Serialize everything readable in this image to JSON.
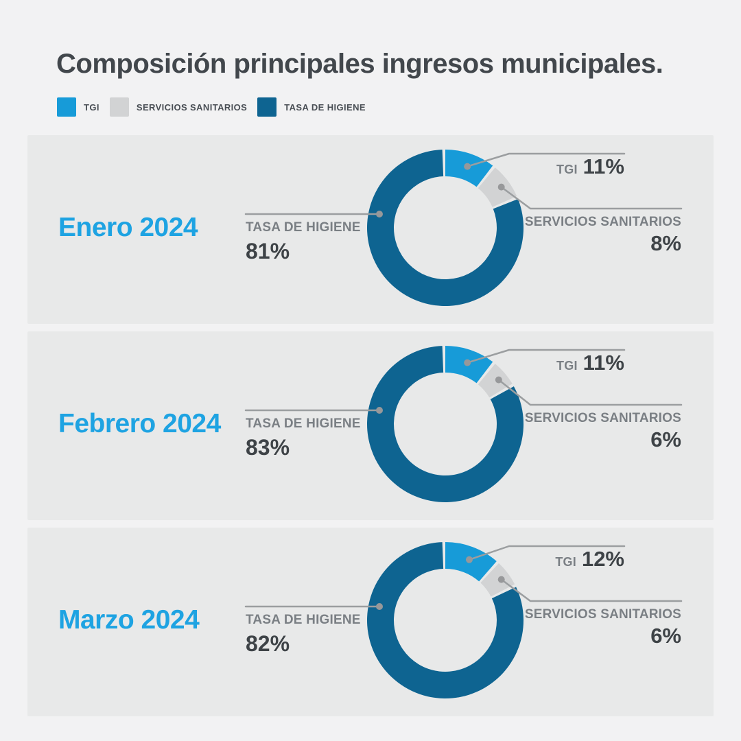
{
  "title": "Composición principales ingresos municipales.",
  "colors": {
    "background": "#F2F2F3",
    "panel": "#E8E9E9",
    "accent_blue": "#179BD8",
    "dark_blue": "#0E6491",
    "gray_segment": "#D2D3D4",
    "month_blue": "#1EA3E2",
    "callout_line": "#9B9EA0",
    "callout_dot": "#97989A",
    "label_gray": "#7A7F84",
    "value_dark": "#3E4347",
    "title_color": "#42474C",
    "legend_text": "#4A4F55"
  },
  "legend": [
    {
      "label": "TGI",
      "color_key": "accent_blue"
    },
    {
      "label": "SERVICIOS SANITARIOS",
      "color_key": "gray_segment"
    },
    {
      "label": "TASA DE HIGIENE",
      "color_key": "dark_blue"
    }
  ],
  "months": [
    {
      "month_label": "Enero 2024",
      "tgi_label": "TGI",
      "tgi_value": "11%",
      "ss_label": "SERVICIOS SANITARIOS",
      "ss_value": "8%",
      "tasa_label": "TASA DE HIGIENE",
      "tasa_value": "81%",
      "segments": {
        "tgi": 11,
        "ss": 8,
        "tasa": 81
      }
    },
    {
      "month_label": "Febrero 2024",
      "tgi_label": "TGI",
      "tgi_value": "11%",
      "ss_label": "SERVICIOS SANITARIOS",
      "ss_value": "6%",
      "tasa_label": "TASA DE HIGIENE",
      "tasa_value": "83%",
      "segments": {
        "tgi": 11,
        "ss": 6,
        "tasa": 83
      }
    },
    {
      "month_label": "Marzo 2024",
      "tgi_label": "TGI",
      "tgi_value": "12%",
      "ss_label": "SERVICIOS SANITARIOS",
      "ss_value": "6%",
      "tasa_label": "TASA DE HIGIENE",
      "tasa_value": "82%",
      "segments": {
        "tgi": 12,
        "ss": 6,
        "tasa": 82
      }
    }
  ],
  "chart_data": [
    {
      "type": "pie",
      "style": "donut",
      "title": "Enero 2024",
      "labels": [
        "TGI",
        "SERVICIOS SANITARIOS",
        "TASA DE HIGIENE"
      ],
      "values": [
        11,
        8,
        81
      ],
      "unit": "percent",
      "start_angle_deg": 0,
      "direction": "clockwise",
      "legend_position": "callouts"
    },
    {
      "type": "pie",
      "style": "donut",
      "title": "Febrero 2024",
      "labels": [
        "TGI",
        "SERVICIOS SANITARIOS",
        "TASA DE HIGIENE"
      ],
      "values": [
        11,
        6,
        83
      ],
      "unit": "percent",
      "start_angle_deg": 0,
      "direction": "clockwise",
      "legend_position": "callouts"
    },
    {
      "type": "pie",
      "style": "donut",
      "title": "Marzo 2024",
      "labels": [
        "TGI",
        "SERVICIOS SANITARIOS",
        "TASA DE HIGIENE"
      ],
      "values": [
        12,
        6,
        82
      ],
      "unit": "percent",
      "start_angle_deg": 0,
      "direction": "clockwise",
      "legend_position": "callouts"
    }
  ]
}
